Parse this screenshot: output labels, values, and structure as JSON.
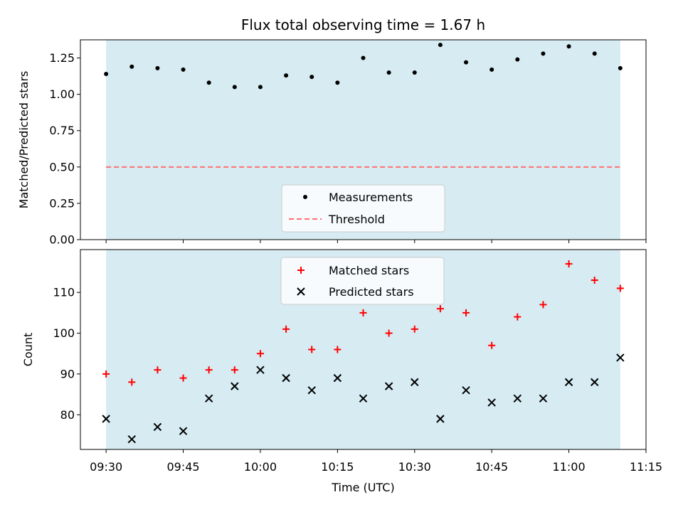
{
  "chart_data": [
    {
      "type": "scatter",
      "title": "Flux total observing time = 1.67 h",
      "ylabel": "Matched/Predicted stars",
      "xlabel": "",
      "ylim": [
        0,
        1.375
      ],
      "yticks": [
        0.0,
        0.25,
        0.5,
        0.75,
        1.0,
        1.25
      ],
      "ytick_labels": [
        "0.00",
        "0.25",
        "0.50",
        "0.75",
        "1.00",
        "1.25"
      ],
      "x": [
        "09:30",
        "09:35",
        "09:40",
        "09:45",
        "09:50",
        "09:55",
        "10:00",
        "10:05",
        "10:10",
        "10:15",
        "10:20",
        "10:25",
        "10:30",
        "10:35",
        "10:40",
        "10:45",
        "10:50",
        "10:55",
        "11:00",
        "11:05",
        "11:10"
      ],
      "series": [
        {
          "name": "Measurements",
          "marker": "dot",
          "color": "#000000",
          "values": [
            1.14,
            1.19,
            1.18,
            1.17,
            1.08,
            1.05,
            1.05,
            1.13,
            1.12,
            1.08,
            1.25,
            1.15,
            1.15,
            1.34,
            1.22,
            1.17,
            1.24,
            1.28,
            1.33,
            1.28,
            1.18
          ]
        },
        {
          "name": "Threshold",
          "marker": "dashed-line",
          "color": "#ff7070",
          "values": [
            0.5,
            0.5
          ]
        }
      ],
      "shaded_span": {
        "from": "09:30",
        "to": "11:10",
        "color": "#add8e6"
      },
      "legend": "lower-center",
      "grid": false
    },
    {
      "type": "scatter",
      "title": "",
      "ylabel": "Count",
      "xlabel": "Time (UTC)",
      "ylim": [
        71.5,
        120.5
      ],
      "yticks": [
        80,
        90,
        100,
        110
      ],
      "ytick_labels": [
        "80",
        "90",
        "100",
        "110"
      ],
      "xlim": [
        "09:25",
        "11:15"
      ],
      "xticks": [
        "09:30",
        "09:45",
        "10:00",
        "10:15",
        "10:30",
        "10:45",
        "11:00",
        "11:15"
      ],
      "x": [
        "09:30",
        "09:35",
        "09:40",
        "09:45",
        "09:50",
        "09:55",
        "10:00",
        "10:05",
        "10:10",
        "10:15",
        "10:20",
        "10:25",
        "10:30",
        "10:35",
        "10:40",
        "10:45",
        "10:50",
        "10:55",
        "11:00",
        "11:05",
        "11:10"
      ],
      "series": [
        {
          "name": "Matched stars",
          "marker": "plus",
          "color": "#ff0000",
          "values": [
            90,
            88,
            91,
            89,
            91,
            91,
            95,
            101,
            96,
            96,
            105,
            100,
            101,
            106,
            105,
            97,
            104,
            107,
            117,
            113,
            111
          ]
        },
        {
          "name": "Predicted stars",
          "marker": "x",
          "color": "#000000",
          "values": [
            79,
            74,
            77,
            76,
            84,
            87,
            91,
            89,
            86,
            89,
            84,
            87,
            88,
            79,
            86,
            83,
            84,
            84,
            88,
            88,
            94
          ]
        }
      ],
      "shaded_span": {
        "from": "09:30",
        "to": "11:10",
        "color": "#add8e6"
      },
      "legend": "upper-center",
      "grid": false
    }
  ]
}
